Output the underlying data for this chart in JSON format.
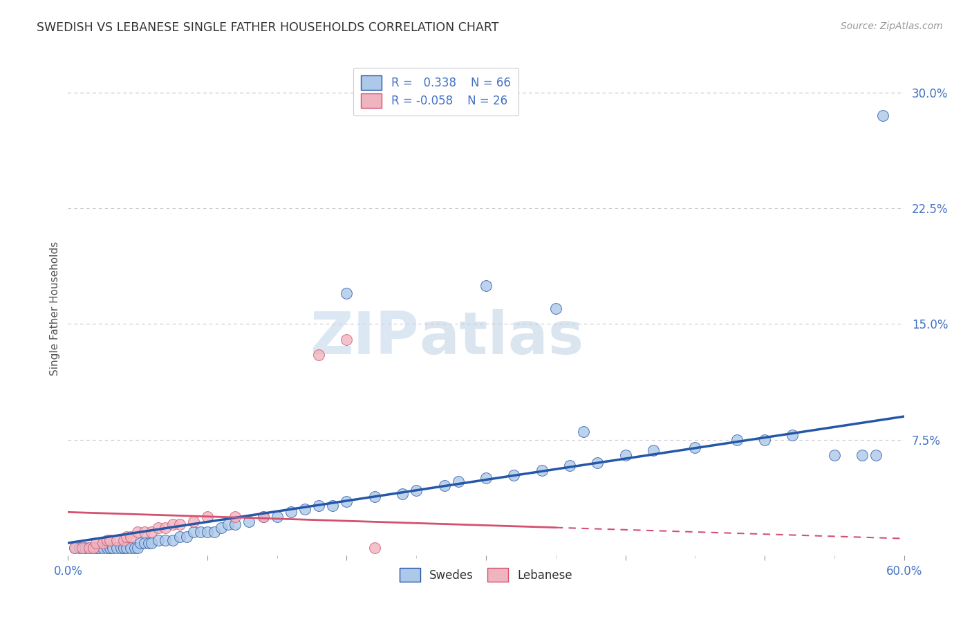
{
  "title": "SWEDISH VS LEBANESE SINGLE FATHER HOUSEHOLDS CORRELATION CHART",
  "source": "Source: ZipAtlas.com",
  "ylabel": "Single Father Households",
  "xlim": [
    0.0,
    0.6
  ],
  "ylim": [
    0.0,
    0.32
  ],
  "y_ticks_right": [
    0.0,
    0.075,
    0.15,
    0.225,
    0.3
  ],
  "y_tick_labels_right": [
    "",
    "7.5%",
    "15.0%",
    "22.5%",
    "30.0%"
  ],
  "r_swedes": 0.338,
  "n_swedes": 66,
  "r_lebanese": -0.058,
  "n_lebanese": 26,
  "swede_color": "#adc8e8",
  "lebanese_color": "#f0b4be",
  "swede_line_color": "#2457a8",
  "lebanese_line_color": "#d45070",
  "swede_x": [
    0.005,
    0.008,
    0.012,
    0.015,
    0.018,
    0.02,
    0.022,
    0.025,
    0.028,
    0.03,
    0.032,
    0.035,
    0.038,
    0.04,
    0.042,
    0.045,
    0.048,
    0.05,
    0.052,
    0.055,
    0.058,
    0.06,
    0.065,
    0.07,
    0.075,
    0.08,
    0.085,
    0.09,
    0.095,
    0.1,
    0.105,
    0.11,
    0.115,
    0.12,
    0.13,
    0.14,
    0.15,
    0.16,
    0.17,
    0.18,
    0.19,
    0.2,
    0.22,
    0.24,
    0.25,
    0.27,
    0.28,
    0.3,
    0.32,
    0.34,
    0.36,
    0.38,
    0.4,
    0.42,
    0.45,
    0.48,
    0.5,
    0.52,
    0.2,
    0.3,
    0.35,
    0.37,
    0.55,
    0.57,
    0.58,
    0.585
  ],
  "swede_y": [
    0.005,
    0.005,
    0.005,
    0.005,
    0.005,
    0.005,
    0.005,
    0.005,
    0.005,
    0.005,
    0.005,
    0.005,
    0.005,
    0.005,
    0.005,
    0.005,
    0.005,
    0.005,
    0.008,
    0.008,
    0.008,
    0.008,
    0.01,
    0.01,
    0.01,
    0.012,
    0.012,
    0.015,
    0.015,
    0.015,
    0.015,
    0.018,
    0.02,
    0.02,
    0.022,
    0.025,
    0.025,
    0.028,
    0.03,
    0.032,
    0.032,
    0.035,
    0.038,
    0.04,
    0.042,
    0.045,
    0.048,
    0.05,
    0.052,
    0.055,
    0.058,
    0.06,
    0.065,
    0.068,
    0.07,
    0.075,
    0.075,
    0.078,
    0.17,
    0.175,
    0.16,
    0.08,
    0.065,
    0.065,
    0.065,
    0.285
  ],
  "lebanese_x": [
    0.005,
    0.01,
    0.015,
    0.018,
    0.02,
    0.025,
    0.028,
    0.03,
    0.035,
    0.04,
    0.042,
    0.045,
    0.05,
    0.055,
    0.06,
    0.065,
    0.07,
    0.075,
    0.08,
    0.09,
    0.1,
    0.12,
    0.14,
    0.18,
    0.2,
    0.22
  ],
  "lebanese_y": [
    0.005,
    0.005,
    0.005,
    0.005,
    0.008,
    0.008,
    0.01,
    0.01,
    0.01,
    0.01,
    0.012,
    0.012,
    0.015,
    0.015,
    0.015,
    0.018,
    0.018,
    0.02,
    0.02,
    0.022,
    0.025,
    0.025,
    0.025,
    0.13,
    0.14,
    0.005
  ],
  "watermark_zip": "ZIP",
  "watermark_atlas": "atlas",
  "background_color": "#ffffff",
  "grid_color": "#c8c8d0"
}
